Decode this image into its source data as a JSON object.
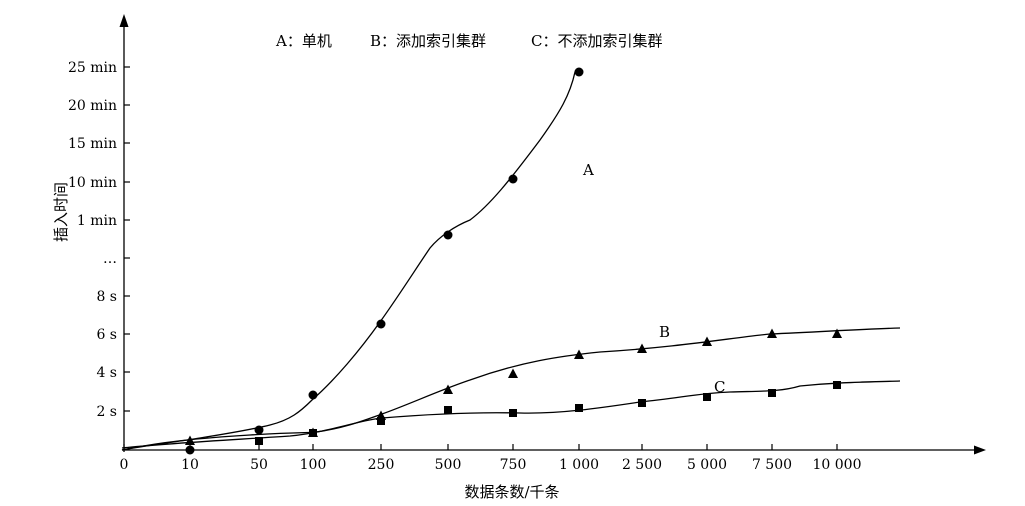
{
  "chart_data": {
    "type": "line",
    "legend": [
      {
        "key": "A",
        "text": "A：单机"
      },
      {
        "key": "B",
        "text": "B：添加索引集群"
      },
      {
        "key": "C",
        "text": "C：不添加索引集群"
      }
    ],
    "xlabel": "数据条数/千条",
    "ylabel": "插入时间",
    "x_ticks": [
      "0",
      "10",
      "50",
      "100",
      "250",
      "500",
      "750",
      "1 000",
      "2 500",
      "5 000",
      "7 500",
      "10 000"
    ],
    "y_ticks": [
      "2 s",
      "4 s",
      "6 s",
      "8 s",
      "…",
      "1 min",
      "10 min",
      "15 min",
      "20 min",
      "25 min"
    ],
    "x_scale": "categorical, unevenly spaced ticks",
    "y_scale": "broken axis: seconds below '…', minutes above",
    "series": [
      {
        "name": "A",
        "marker": "circle",
        "points": [
          {
            "x": "10",
            "y": "0"
          },
          {
            "x": "50",
            "y": "1 s"
          },
          {
            "x": "100",
            "y": "2.8 s"
          },
          {
            "x": "250",
            "y": "6.5 s"
          },
          {
            "x": "500",
            "y": "0.8 min"
          },
          {
            "x": "750",
            "y": "10 min"
          },
          {
            "x": "1 000",
            "y": "24 min"
          }
        ]
      },
      {
        "name": "B",
        "marker": "triangle",
        "points": [
          {
            "x": "10",
            "y": "0.4 s"
          },
          {
            "x": "100",
            "y": "0.8 s"
          },
          {
            "x": "250",
            "y": "1.7 s"
          },
          {
            "x": "500",
            "y": "3.1 s"
          },
          {
            "x": "750",
            "y": "3.9 s"
          },
          {
            "x": "1 000",
            "y": "4.9 s"
          },
          {
            "x": "2 500",
            "y": "5.2 s"
          },
          {
            "x": "5 000",
            "y": "5.6 s"
          },
          {
            "x": "7 500",
            "y": "6.0 s"
          },
          {
            "x": "10 000",
            "y": "6.0 s"
          }
        ]
      },
      {
        "name": "C",
        "marker": "square",
        "points": [
          {
            "x": "50",
            "y": "0.4 s"
          },
          {
            "x": "100",
            "y": "0.8 s"
          },
          {
            "x": "250",
            "y": "1.5 s"
          },
          {
            "x": "500",
            "y": "2.0 s"
          },
          {
            "x": "750",
            "y": "1.9 s"
          },
          {
            "x": "1 000",
            "y": "2.1 s"
          },
          {
            "x": "2 500",
            "y": "2.4 s"
          },
          {
            "x": "5 000",
            "y": "2.7 s"
          },
          {
            "x": "7 500",
            "y": "2.9 s"
          },
          {
            "x": "10 000",
            "y": "3.3 s"
          }
        ]
      }
    ],
    "grid": false,
    "legend_position": "top-center"
  }
}
